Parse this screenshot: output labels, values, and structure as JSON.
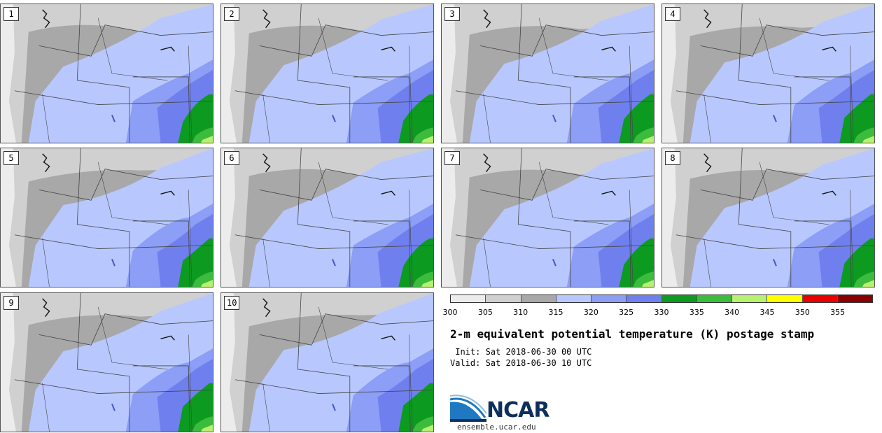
{
  "product": {
    "title": "2-m equivalent potential temperature (K) postage stamp",
    "init_line": " Init: Sat 2018-06-30 00 UTC",
    "valid_line": "Valid: Sat 2018-06-30 10 UTC"
  },
  "members": [
    "1",
    "2",
    "3",
    "4",
    "5",
    "6",
    "7",
    "8",
    "9",
    "10"
  ],
  "colorbar": {
    "ticks": [
      "300",
      "305",
      "310",
      "315",
      "320",
      "325",
      "330",
      "335",
      "340",
      "345",
      "350",
      "355"
    ],
    "colors": [
      "#ececec",
      "#d0d0d0",
      "#a8a8a8",
      "#b8c8ff",
      "#8c9ef5",
      "#6f80ee",
      "#0c9a20",
      "#3cbc3c",
      "#b8f070",
      "#ffff00",
      "#e80000",
      "#8a0000"
    ]
  },
  "branding": {
    "logo_text": "NCAR",
    "url": "ensemble.ucar.edu",
    "logo_colors": [
      "#0d2f5c",
      "#1e79c2"
    ]
  }
}
